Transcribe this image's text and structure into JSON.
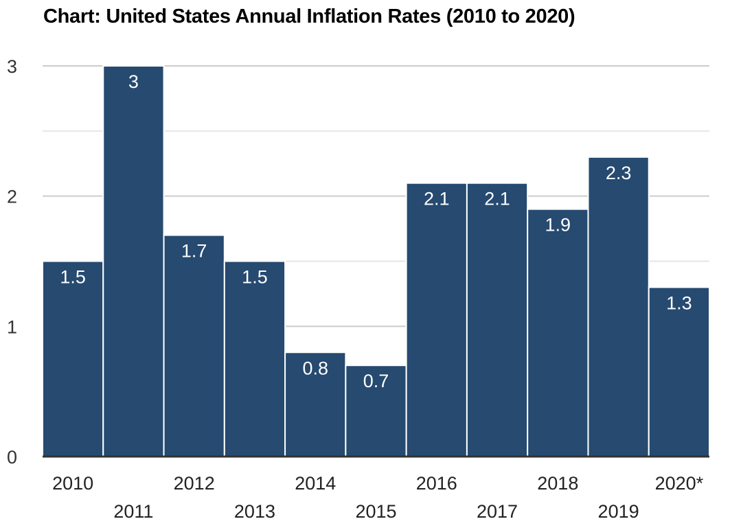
{
  "chart_data": {
    "type": "bar",
    "title": "Chart: United States Annual Inflation Rates (2010 to 2020)",
    "xlabel": "",
    "ylabel": "",
    "categories": [
      "2010",
      "2011",
      "2012",
      "2013",
      "2014",
      "2015",
      "2016",
      "2017",
      "2018",
      "2019",
      "2020*"
    ],
    "values": [
      1.5,
      3,
      1.7,
      1.5,
      0.8,
      0.7,
      2.1,
      2.1,
      1.9,
      2.3,
      1.3
    ],
    "data_labels": [
      "1.5",
      "3",
      "1.7",
      "1.5",
      "0.8",
      "0.7",
      "2.1",
      "2.1",
      "1.9",
      "2.3",
      "1.3"
    ],
    "ylim": [
      0,
      3
    ],
    "yticks": [
      "0",
      "1",
      "2",
      "3"
    ],
    "minor_gridlines": [
      0.5,
      1.5,
      2.5
    ],
    "grid": true,
    "legend": "none",
    "bar_color": "#264a70"
  }
}
